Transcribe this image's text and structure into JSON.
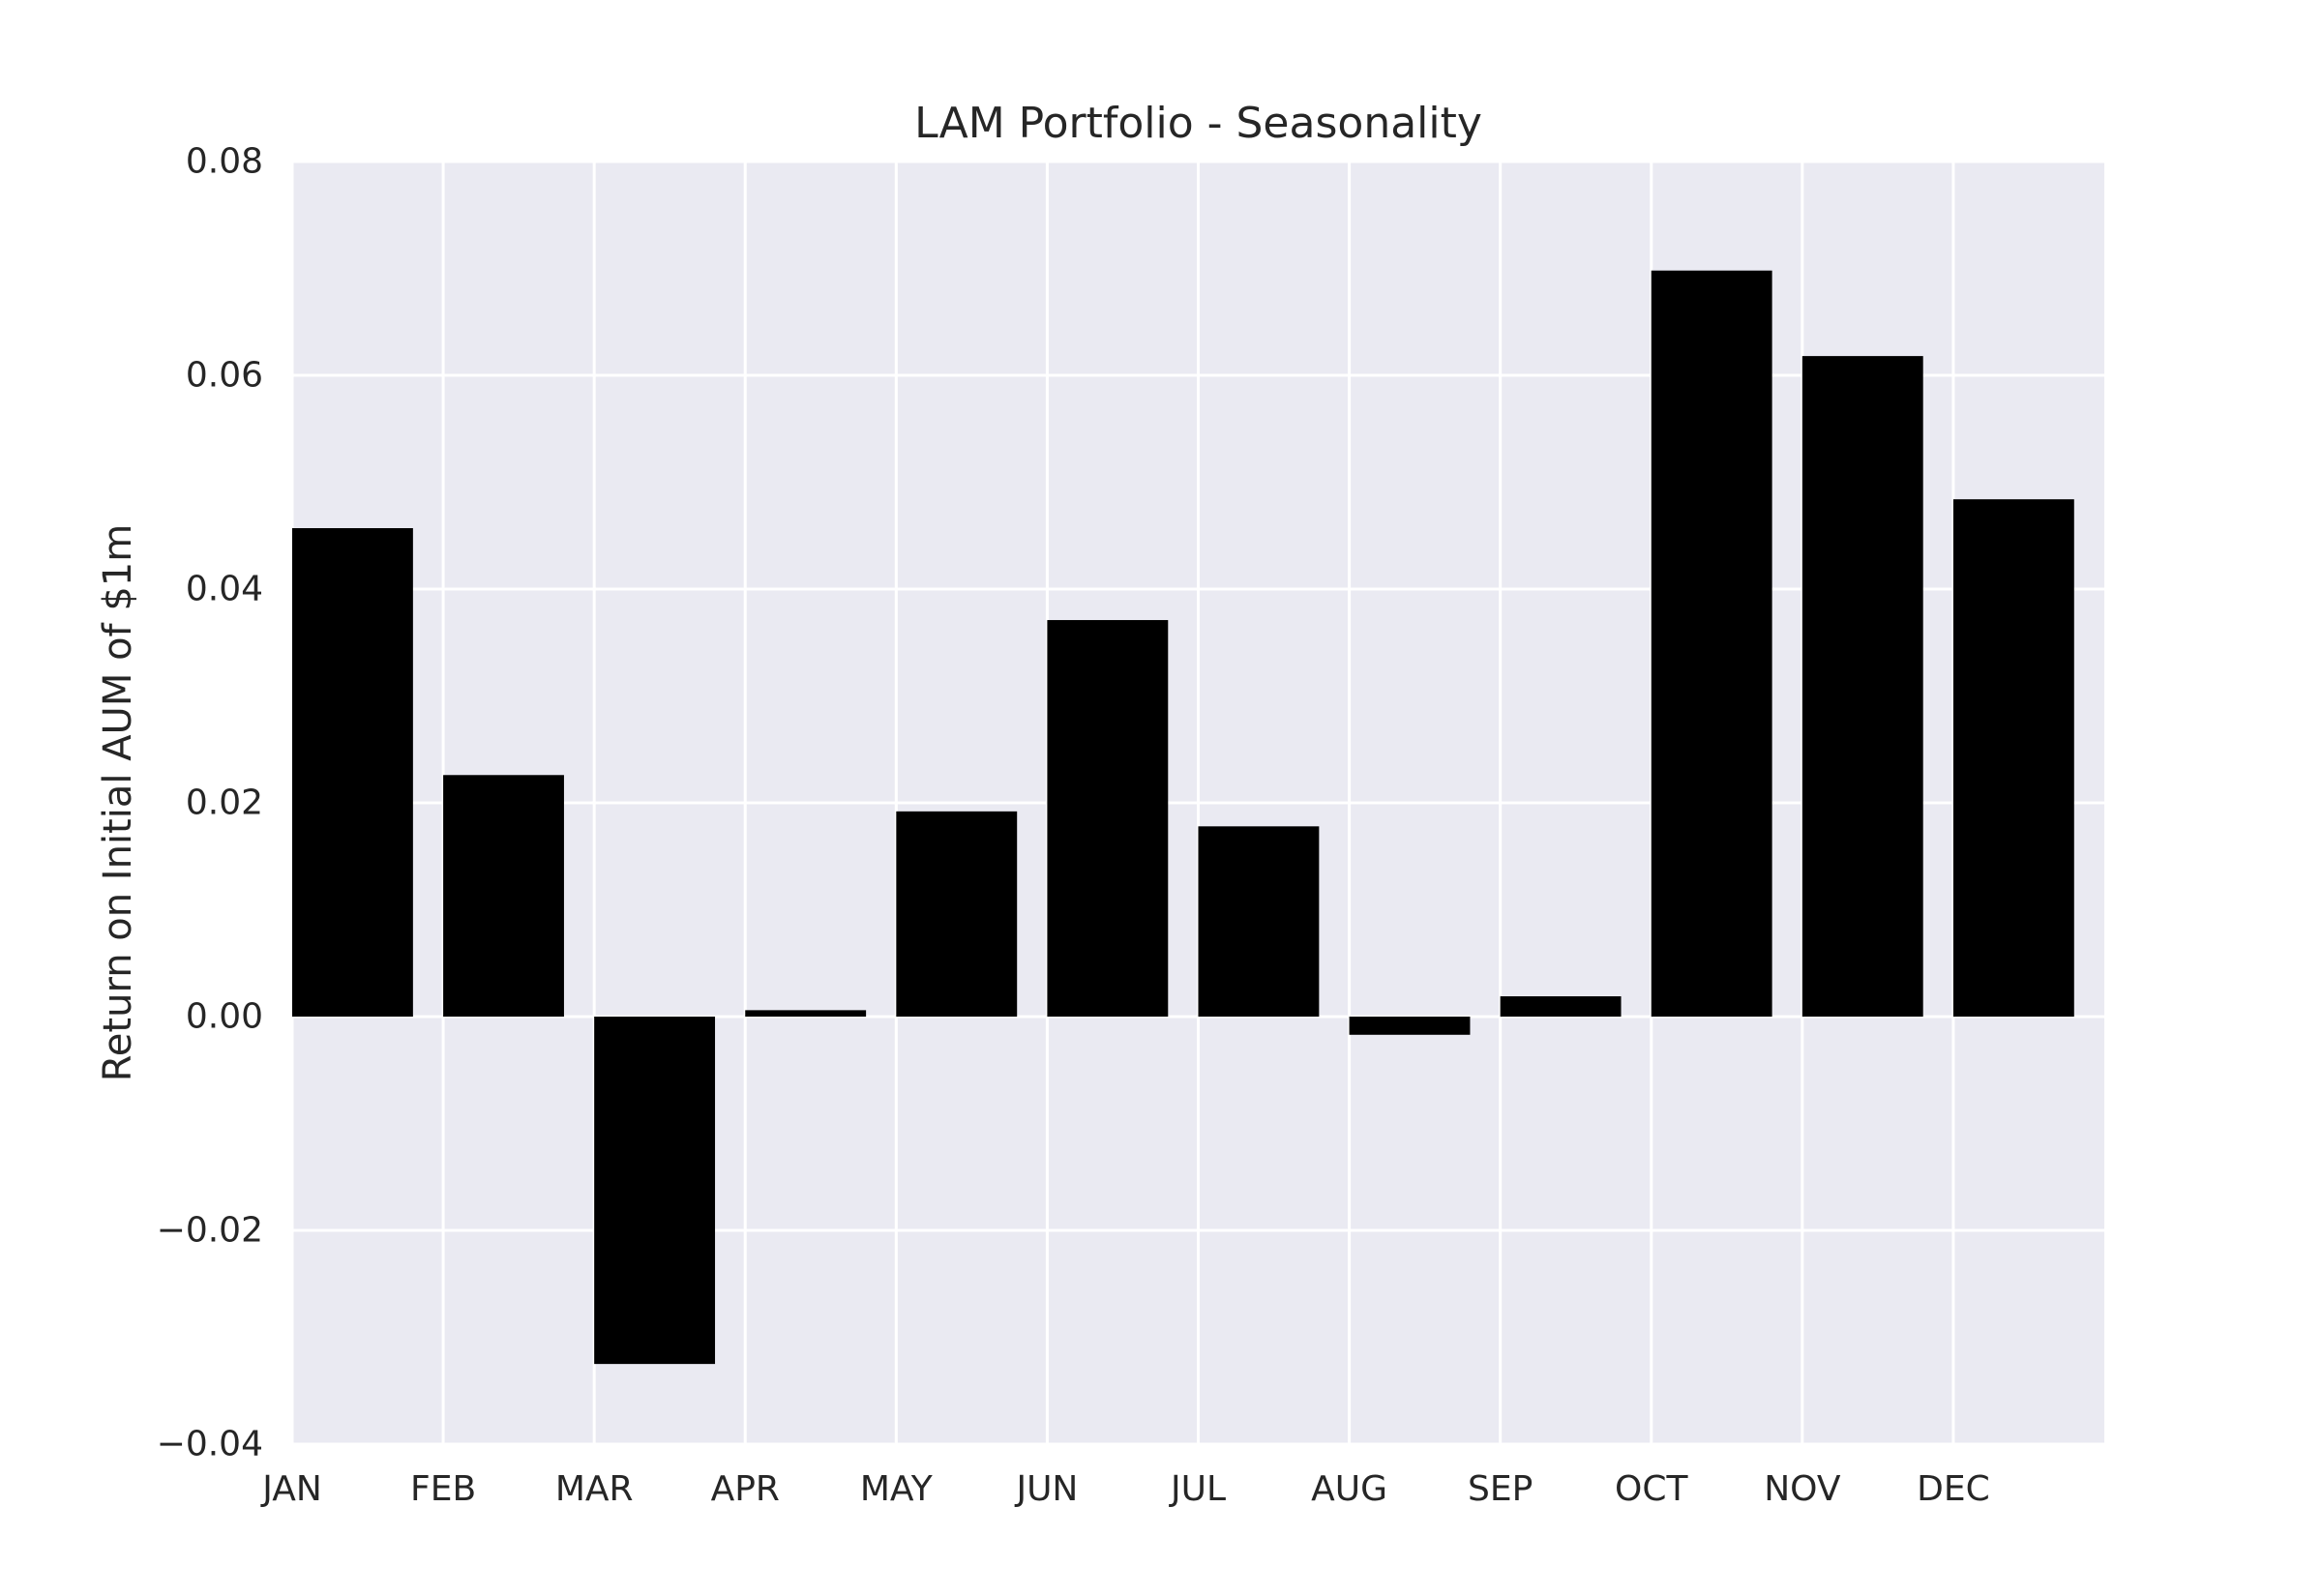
{
  "chart_data": {
    "type": "bar",
    "title": "LAM Portfolio - Seasonality",
    "xlabel": "",
    "ylabel": "Return on Initial AUM of $1m",
    "categories": [
      "JAN",
      "FEB",
      "MAR",
      "APR",
      "MAY",
      "JUN",
      "JUL",
      "AUG",
      "SEP",
      "OCT",
      "NOV",
      "DEC"
    ],
    "values": [
      0.0457,
      0.0226,
      -0.0325,
      0.0006,
      0.0192,
      0.0371,
      0.0178,
      -0.0017,
      0.0019,
      0.0698,
      0.0618,
      0.0484
    ],
    "ylim": [
      -0.04,
      0.08
    ],
    "yticks": [
      -0.04,
      -0.02,
      0.0,
      0.02,
      0.04,
      0.06,
      0.08
    ],
    "ytick_labels": [
      "−0.04",
      "−0.02",
      "0.00",
      "0.02",
      "0.04",
      "0.06",
      "0.08"
    ],
    "grid": true,
    "colors": {
      "bar": "#000000",
      "plot_background": "#eaeaf2",
      "grid": "#ffffff",
      "text": "#262626"
    }
  }
}
